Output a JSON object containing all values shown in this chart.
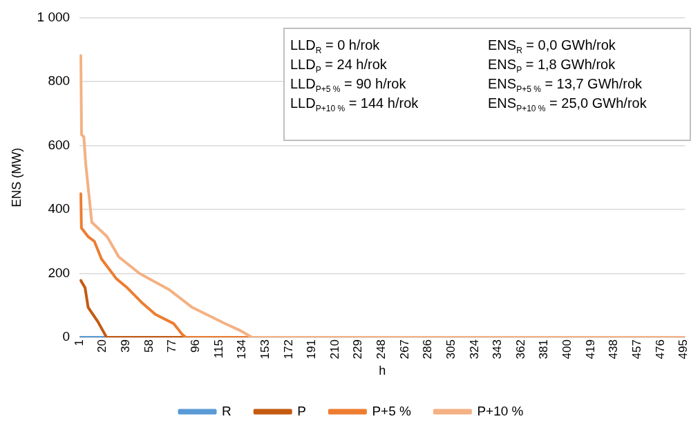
{
  "chart_data": {
    "type": "line",
    "xlabel": "h",
    "ylabel": "ENS (MW)",
    "xlim": [
      1,
      496
    ],
    "xticks": [
      1,
      20,
      39,
      58,
      77,
      96,
      115,
      134,
      153,
      172,
      191,
      210,
      229,
      248,
      267,
      286,
      305,
      324,
      343,
      362,
      381,
      400,
      419,
      438,
      457,
      476,
      495
    ],
    "ylim": [
      0,
      1000
    ],
    "yticks": [
      0,
      200,
      400,
      600,
      800,
      {
        "value": 1000,
        "label": "1 000"
      }
    ],
    "grid": "y",
    "legend": "bottom",
    "marker": "none",
    "line_style": "solid",
    "series": [
      {
        "name": "R",
        "color": "#5b9bd5",
        "x": [
          1,
          22
        ],
        "values": [
          0,
          0
        ]
      },
      {
        "name": "P",
        "color": "#c55a11",
        "x": [
          2,
          5.5,
          8,
          16,
          21.8,
          23,
          88
        ],
        "values": [
          178,
          155,
          94,
          49,
          9,
          0,
          0
        ]
      },
      {
        "name": "P+5 %",
        "color": "#ed7d31",
        "x": [
          2,
          2.5,
          8,
          13,
          19,
          31,
          40,
          51.6,
          63,
          78,
          85,
          88,
          142
        ],
        "values": [
          449,
          342,
          315,
          301,
          245,
          184,
          155,
          110,
          72,
          43,
          9,
          0,
          0
        ]
      },
      {
        "name": "P+10 %",
        "color": "#f4b183",
        "x": [
          2,
          2.6,
          4.5,
          6,
          11,
          23.5,
          33,
          50,
          74,
          93,
          119,
          132,
          142,
          496
        ],
        "values": [
          881,
          634,
          627,
          544,
          360,
          315,
          252,
          200,
          150,
          94,
          45,
          22,
          0,
          0
        ]
      }
    ],
    "annotations": [
      "LLD$_{R}$ = 0 h/rok",
      "ENS$_{R}$ = 0,0 GWh/rok",
      "LLD$_{P}$ = 24 h/rok",
      "ENS$_{P}$ = 1,8 GWh/rok",
      "LLD$_{P+5 %}$ = 90 h/rok",
      "ENS$_{P+5 %}$ = 13,7 GWh/rok",
      "LLD$_{P+10 %}$ = 144 h/rok",
      "ENS$_{P+10 %}$ = 25,0 GWh/rok"
    ]
  }
}
